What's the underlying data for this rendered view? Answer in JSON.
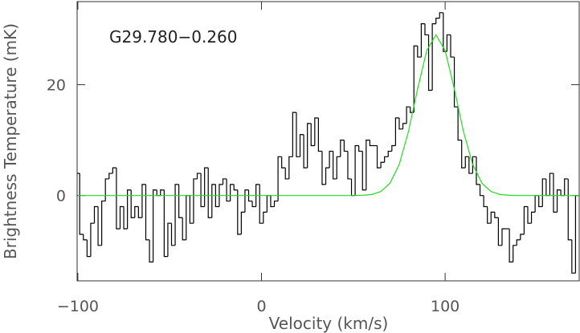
{
  "chart_data": {
    "type": "step",
    "annotation": "G29.780−0.260",
    "x_label": "Velocity (km/s)",
    "y_label": "Brightness Temperature (mK)",
    "xlim": [
      -100.4,
      173
    ],
    "ylim": [
      -15.4,
      35
    ],
    "xticks": [
      {
        "value": -100,
        "label": "−100"
      },
      0,
      100
    ],
    "yticks": [
      0,
      20
    ],
    "series": [
      {
        "type": "step",
        "color": "#000000",
        "x": [
          -100,
          -98,
          -96,
          -94,
          -92,
          -90,
          -88,
          -86,
          -84,
          -82,
          -80,
          -78,
          -76,
          -74,
          -72,
          -70,
          -68,
          -66,
          -64,
          -62,
          -60,
          -58,
          -56,
          -54,
          -52,
          -50,
          -48,
          -46,
          -44,
          -42,
          -40,
          -38,
          -36,
          -34,
          -32,
          -30,
          -28,
          -26,
          -24,
          -22,
          -20,
          -18,
          -16,
          -14,
          -12,
          -10,
          -8,
          -6,
          -4,
          -2,
          0,
          2,
          4,
          6,
          8,
          10,
          12,
          14,
          16,
          18,
          20,
          22,
          24,
          26,
          28,
          30,
          32,
          34,
          36,
          38,
          40,
          42,
          44,
          46,
          48,
          50,
          52,
          54,
          56,
          58,
          60,
          62,
          64,
          66,
          68,
          70,
          72,
          74,
          76,
          78,
          80,
          82,
          84,
          86,
          88,
          90,
          92,
          94,
          96,
          98,
          100,
          102,
          104,
          106,
          108,
          110,
          112,
          114,
          116,
          118,
          120,
          122,
          124,
          126,
          128,
          130,
          132,
          134,
          136,
          138,
          140,
          142,
          144,
          146,
          148,
          150,
          152,
          154,
          156,
          158,
          160,
          162,
          164,
          166,
          168,
          170,
          172
        ],
        "values": [
          4,
          -7,
          -8,
          -11,
          -5,
          -2,
          -9,
          -1,
          3,
          4,
          5,
          -6,
          -2,
          -6,
          1,
          -4,
          -2,
          -4,
          2,
          -8,
          -12,
          1,
          0,
          1,
          -11,
          -5,
          -9,
          2,
          -4,
          -8,
          0,
          -5,
          3,
          4,
          -2,
          5,
          -4,
          2,
          -2,
          2,
          3,
          -1,
          2,
          1,
          -7,
          -3,
          1,
          -1,
          -2,
          2,
          -5,
          -3,
          0,
          -2,
          -1,
          7,
          5,
          3,
          7,
          15,
          7,
          11,
          5,
          13,
          9,
          14,
          8,
          2,
          5,
          8,
          3,
          7,
          10,
          8,
          3,
          0,
          9,
          8,
          1,
          10,
          9,
          9,
          5,
          6,
          7,
          8,
          9,
          14,
          12,
          13,
          16,
          15,
          27,
          25,
          31,
          29,
          19,
          31,
          32,
          33,
          26,
          29,
          25,
          16,
          10,
          5,
          7,
          4,
          7,
          2,
          0,
          -2,
          -5,
          -3,
          -4,
          -9,
          -6,
          -6,
          -12,
          -9,
          -8,
          -7,
          -2,
          -5,
          -3,
          0,
          -2,
          3,
          0,
          4,
          -3,
          1,
          0,
          3,
          -8,
          -14,
          0
        ]
      },
      {
        "type": "line",
        "color": "#22dd22",
        "x": [
          -100,
          40,
          50,
          55,
          60,
          65,
          70,
          75,
          80,
          85,
          90,
          95,
          100,
          105,
          110,
          115,
          120,
          125,
          130,
          135,
          140,
          150,
          173
        ],
        "values": [
          0,
          0,
          0,
          0.04,
          0.19,
          0.72,
          2.24,
          5.62,
          11.52,
          19.24,
          26.18,
          29,
          26.18,
          19.24,
          11.52,
          5.62,
          2.24,
          0.72,
          0.19,
          0.04,
          0,
          0,
          0
        ]
      }
    ]
  }
}
